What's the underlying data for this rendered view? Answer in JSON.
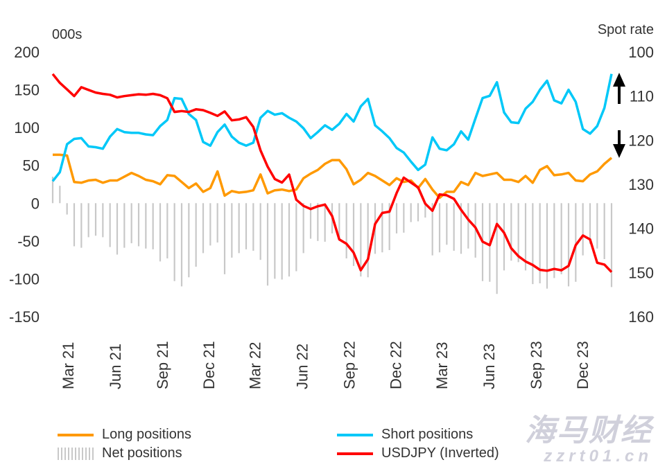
{
  "chart_data": {
    "type": "line",
    "left_axis": {
      "label": "000s",
      "range": [
        -150,
        200
      ],
      "ticks": [
        200,
        150,
        100,
        50,
        0,
        -50,
        -100,
        -150
      ]
    },
    "right_axis": {
      "label": "Spot rate",
      "range": [
        100,
        160
      ],
      "inverted": true,
      "ticks": [
        100,
        110,
        120,
        130,
        140,
        150,
        160
      ]
    },
    "x_ticks": [
      "Mar 21",
      "Jun 21",
      "Sep 21",
      "Dec 21",
      "Mar 22",
      "Jun 22",
      "Sep 22",
      "Dec 22",
      "Mar 23",
      "Jun 23",
      "Sep 23",
      "Dec 23"
    ],
    "x_tick_dates": [
      "2021-03-01",
      "2021-06-01",
      "2021-09-01",
      "2021-12-01",
      "2022-03-01",
      "2022-06-01",
      "2022-09-01",
      "2022-12-01",
      "2023-03-01",
      "2023-06-01",
      "2023-09-01",
      "2023-12-01"
    ],
    "x": [
      "2021-01-30",
      "2021-02-13",
      "2021-02-27",
      "2021-03-13",
      "2021-03-27",
      "2021-04-10",
      "2021-04-24",
      "2021-05-08",
      "2021-05-22",
      "2021-06-05",
      "2021-06-19",
      "2021-07-03",
      "2021-07-17",
      "2021-07-31",
      "2021-08-14",
      "2021-08-28",
      "2021-09-11",
      "2021-09-25",
      "2021-10-09",
      "2021-10-23",
      "2021-11-06",
      "2021-11-20",
      "2021-12-04",
      "2021-12-18",
      "2022-01-01",
      "2022-01-15",
      "2022-01-29",
      "2022-02-12",
      "2022-02-26",
      "2022-03-12",
      "2022-03-26",
      "2022-04-09",
      "2022-04-23",
      "2022-05-07",
      "2022-05-21",
      "2022-06-04",
      "2022-06-18",
      "2022-07-02",
      "2022-07-16",
      "2022-07-30",
      "2022-08-13",
      "2022-08-27",
      "2022-09-10",
      "2022-09-24",
      "2022-10-08",
      "2022-10-22",
      "2022-11-05",
      "2022-11-19",
      "2022-12-03",
      "2022-12-17",
      "2022-12-31",
      "2023-01-14",
      "2023-01-28",
      "2023-02-11",
      "2023-02-25",
      "2023-03-11",
      "2023-03-25",
      "2023-04-08",
      "2023-04-22",
      "2023-05-06",
      "2023-05-20",
      "2023-06-03",
      "2023-06-17",
      "2023-07-01",
      "2023-07-15",
      "2023-07-29",
      "2023-08-12",
      "2023-08-26",
      "2023-09-09",
      "2023-09-23",
      "2023-10-07",
      "2023-10-21",
      "2023-11-04",
      "2023-11-18",
      "2023-12-02",
      "2023-12-16",
      "2023-12-30",
      "2024-01-13",
      "2024-01-27"
    ],
    "series": [
      {
        "name": "Long positions",
        "axis": "left",
        "kind": "line",
        "color": "#FF9900",
        "values": [
          64,
          64,
          63,
          28,
          27,
          30,
          31,
          27,
          30,
          30,
          35,
          40,
          36,
          31,
          29,
          25,
          37,
          36,
          28,
          20,
          26,
          15,
          20,
          42,
          10,
          16,
          14,
          15,
          17,
          38,
          13,
          17,
          18,
          16,
          18,
          33,
          39,
          44,
          52,
          57,
          57,
          45,
          25,
          31,
          40,
          36,
          30,
          24,
          33,
          28,
          30,
          20,
          32,
          18,
          7,
          15,
          15,
          28,
          24,
          40,
          36,
          38,
          40,
          31,
          31,
          28,
          36,
          27,
          44,
          49,
          37,
          38,
          40,
          30,
          29,
          38,
          42,
          52,
          60
        ]
      },
      {
        "name": "Short positions",
        "axis": "left",
        "kind": "line",
        "color": "#00C8F8",
        "values": [
          29,
          41,
          78,
          85,
          86,
          75,
          74,
          72,
          88,
          98,
          94,
          93,
          93,
          91,
          90,
          102,
          110,
          139,
          138,
          118,
          110,
          81,
          76,
          94,
          104,
          88,
          80,
          76,
          80,
          113,
          122,
          117,
          119,
          113,
          108,
          99,
          86,
          94,
          103,
          97,
          105,
          118,
          108,
          128,
          138,
          103,
          95,
          86,
          73,
          67,
          55,
          44,
          51,
          87,
          72,
          70,
          78,
          95,
          84,
          112,
          139,
          142,
          160,
          120,
          107,
          106,
          125,
          134,
          150,
          162,
          136,
          132,
          150,
          134,
          98,
          92,
          102,
          126,
          171
        ]
      },
      {
        "name": "Net positions",
        "axis": "left",
        "kind": "bar",
        "color": "#C8C8C8",
        "values": [
          35,
          23,
          -15,
          -57,
          -59,
          -45,
          -43,
          -45,
          -58,
          -68,
          -59,
          -53,
          -57,
          -60,
          -61,
          -77,
          -73,
          -103,
          -110,
          -98,
          -84,
          -66,
          -56,
          -52,
          -94,
          -72,
          -66,
          -61,
          -63,
          -75,
          -109,
          -100,
          -101,
          -97,
          -90,
          -66,
          -47,
          -50,
          -51,
          -40,
          -48,
          -73,
          -83,
          -97,
          -98,
          -67,
          -65,
          -62,
          -40,
          -39,
          -25,
          -24,
          -19,
          -69,
          -65,
          -55,
          -63,
          -67,
          -60,
          -72,
          -103,
          -104,
          -120,
          -89,
          -76,
          -78,
          -89,
          -107,
          -106,
          -113,
          -99,
          -94,
          -110,
          -104,
          -69,
          -54,
          -60,
          -74,
          -111
        ]
      },
      {
        "name": "USDJPY (Inverted)",
        "axis": "right",
        "kind": "line",
        "color": "#FF0000",
        "values": [
          105.0,
          107.0,
          108.5,
          110.0,
          108.0,
          108.6,
          109.2,
          109.5,
          109.7,
          110.3,
          110.0,
          109.8,
          109.6,
          109.7,
          109.5,
          109.8,
          110.5,
          113.6,
          113.4,
          113.6,
          113.0,
          113.2,
          113.8,
          114.5,
          113.5,
          115.5,
          115.3,
          114.8,
          117.0,
          122.3,
          126.0,
          128.8,
          129.6,
          127.8,
          133.5,
          134.9,
          135.6,
          135.0,
          134.6,
          137.2,
          142.5,
          143.5,
          145.5,
          149.5,
          147.0,
          139.0,
          136.5,
          136.2,
          132.0,
          128.5,
          129.6,
          130.7,
          134.4,
          136.0,
          132.3,
          132.5,
          133.3,
          135.8,
          138.0,
          139.8,
          143.0,
          143.8,
          139.0,
          141.0,
          144.5,
          146.3,
          147.5,
          148.3,
          149.4,
          149.6,
          149.2,
          149.5,
          148.5,
          143.8,
          141.6,
          142.5,
          147.8,
          148.2,
          149.9
        ]
      }
    ],
    "annotations": [
      {
        "type": "arrow",
        "direction": "up"
      },
      {
        "type": "arrow",
        "direction": "down"
      }
    ],
    "grid": false,
    "legend_placement": "bottom"
  },
  "legend": [
    "Long positions",
    "Short positions",
    "Net positions",
    "USDJPY (Inverted)"
  ],
  "watermark": {
    "line1": "海马财经",
    "line2": "zzrt01.cn"
  }
}
